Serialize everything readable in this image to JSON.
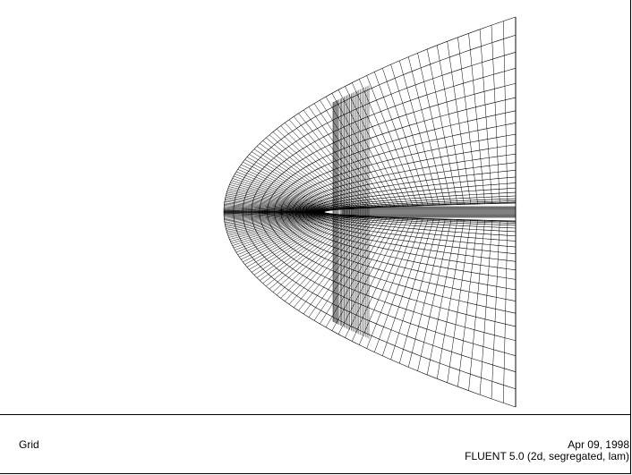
{
  "caption": {
    "title": "Grid",
    "date": "Apr 09, 1998",
    "solver": "FLUENT 5.0 (2d, segregated, lam)"
  },
  "grid": {
    "description_kind": "structured 2d mesh",
    "line_color": "#000000",
    "background": "#ffffff"
  }
}
